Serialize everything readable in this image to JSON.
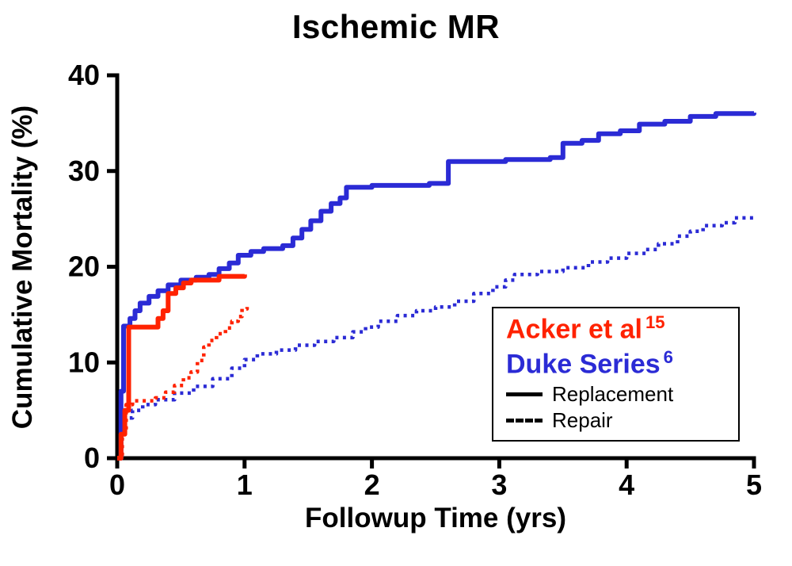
{
  "title": "Ischemic MR",
  "colors": {
    "red": "#ff2200",
    "blue": "#2b2bd5",
    "axis": "#000000",
    "background": "#ffffff"
  },
  "legend": {
    "acker_label": "Acker et al",
    "acker_sup": "15",
    "duke_label": "Duke Series",
    "duke_sup": "6",
    "replacement_label": "Replacement",
    "repair_label": "Repair"
  },
  "chart_data": {
    "type": "line",
    "title": "Ischemic MR",
    "xlabel": "Followup Time (yrs)",
    "ylabel": "Cumulative Mortality (%)",
    "xlim": [
      0,
      5
    ],
    "ylim": [
      0,
      40
    ],
    "xticks": [
      0,
      1,
      2,
      3,
      4,
      5
    ],
    "yticks": [
      0,
      10,
      20,
      30,
      40
    ],
    "grid": false,
    "legend_position": "inside-right",
    "curve_style": "kaplan-meier-steps",
    "series": [
      {
        "id": "duke-repair",
        "name": "Duke Series - Repair",
        "color": "blue",
        "dash": "dotted",
        "points": [
          [
            0,
            0
          ],
          [
            0.03,
            2.5
          ],
          [
            0.06,
            4.2
          ],
          [
            0.12,
            5.0
          ],
          [
            0.2,
            5.6
          ],
          [
            0.3,
            6.1
          ],
          [
            0.45,
            6.8
          ],
          [
            0.6,
            7.5
          ],
          [
            0.75,
            8.3
          ],
          [
            0.9,
            9.4
          ],
          [
            1.0,
            10.3
          ],
          [
            1.1,
            10.9
          ],
          [
            1.25,
            11.3
          ],
          [
            1.4,
            11.8
          ],
          [
            1.55,
            12.2
          ],
          [
            1.7,
            12.6
          ],
          [
            1.85,
            13.2
          ],
          [
            1.95,
            13.7
          ],
          [
            2.05,
            14.3
          ],
          [
            2.2,
            14.9
          ],
          [
            2.35,
            15.4
          ],
          [
            2.5,
            15.8
          ],
          [
            2.65,
            16.4
          ],
          [
            2.8,
            17.2
          ],
          [
            2.95,
            17.9
          ],
          [
            3.05,
            18.6
          ],
          [
            3.12,
            19.2
          ],
          [
            3.3,
            19.5
          ],
          [
            3.5,
            19.9
          ],
          [
            3.7,
            20.5
          ],
          [
            3.85,
            20.9
          ],
          [
            4.0,
            21.4
          ],
          [
            4.15,
            21.8
          ],
          [
            4.25,
            22.4
          ],
          [
            4.4,
            23.2
          ],
          [
            4.5,
            23.7
          ],
          [
            4.6,
            24.3
          ],
          [
            4.75,
            24.6
          ],
          [
            4.85,
            25.1
          ],
          [
            5.0,
            25.2
          ]
        ]
      },
      {
        "id": "acker-repair",
        "name": "Acker et al - Repair",
        "color": "red",
        "dash": "dotted",
        "points": [
          [
            0,
            0
          ],
          [
            0.04,
            3.0
          ],
          [
            0.07,
            5.6
          ],
          [
            0.12,
            6.0
          ],
          [
            0.3,
            6.3
          ],
          [
            0.38,
            6.9
          ],
          [
            0.45,
            7.6
          ],
          [
            0.52,
            8.4
          ],
          [
            0.58,
            9.0
          ],
          [
            0.63,
            10.2
          ],
          [
            0.68,
            11.6
          ],
          [
            0.72,
            12.3
          ],
          [
            0.78,
            13.0
          ],
          [
            0.85,
            13.6
          ],
          [
            0.9,
            14.3
          ],
          [
            0.95,
            14.8
          ],
          [
            0.98,
            15.6
          ],
          [
            1.02,
            15.8
          ]
        ]
      },
      {
        "id": "duke-replacement",
        "name": "Duke Series - Replacement",
        "color": "blue",
        "dash": "solid",
        "points": [
          [
            0,
            0
          ],
          [
            0.03,
            7.0
          ],
          [
            0.05,
            13.8
          ],
          [
            0.1,
            14.6
          ],
          [
            0.14,
            15.4
          ],
          [
            0.18,
            16.2
          ],
          [
            0.25,
            16.9
          ],
          [
            0.32,
            17.5
          ],
          [
            0.4,
            18.1
          ],
          [
            0.5,
            18.6
          ],
          [
            0.62,
            18.9
          ],
          [
            0.72,
            19.2
          ],
          [
            0.8,
            19.8
          ],
          [
            0.88,
            20.4
          ],
          [
            0.95,
            21.2
          ],
          [
            1.05,
            21.6
          ],
          [
            1.15,
            21.9
          ],
          [
            1.3,
            22.2
          ],
          [
            1.38,
            23.0
          ],
          [
            1.45,
            23.9
          ],
          [
            1.52,
            24.8
          ],
          [
            1.6,
            25.8
          ],
          [
            1.68,
            26.6
          ],
          [
            1.75,
            27.2
          ],
          [
            1.8,
            28.3
          ],
          [
            2.0,
            28.5
          ],
          [
            2.45,
            28.7
          ],
          [
            2.6,
            31.0
          ],
          [
            3.05,
            31.2
          ],
          [
            3.4,
            31.4
          ],
          [
            3.5,
            32.9
          ],
          [
            3.65,
            33.2
          ],
          [
            3.78,
            33.9
          ],
          [
            3.95,
            34.2
          ],
          [
            4.1,
            34.9
          ],
          [
            4.3,
            35.2
          ],
          [
            4.5,
            35.7
          ],
          [
            4.7,
            36.0
          ],
          [
            5.0,
            36.1
          ]
        ]
      },
      {
        "id": "acker-replacement",
        "name": "Acker et al - Replacement",
        "color": "red",
        "dash": "solid",
        "points": [
          [
            0,
            0
          ],
          [
            0.03,
            2.5
          ],
          [
            0.06,
            5.0
          ],
          [
            0.09,
            13.7
          ],
          [
            0.28,
            13.7
          ],
          [
            0.32,
            14.6
          ],
          [
            0.36,
            15.4
          ],
          [
            0.4,
            17.2
          ],
          [
            0.46,
            17.8
          ],
          [
            0.52,
            18.3
          ],
          [
            0.58,
            18.6
          ],
          [
            0.75,
            18.6
          ],
          [
            0.8,
            19.0
          ],
          [
            1.0,
            19.2
          ]
        ]
      }
    ]
  }
}
